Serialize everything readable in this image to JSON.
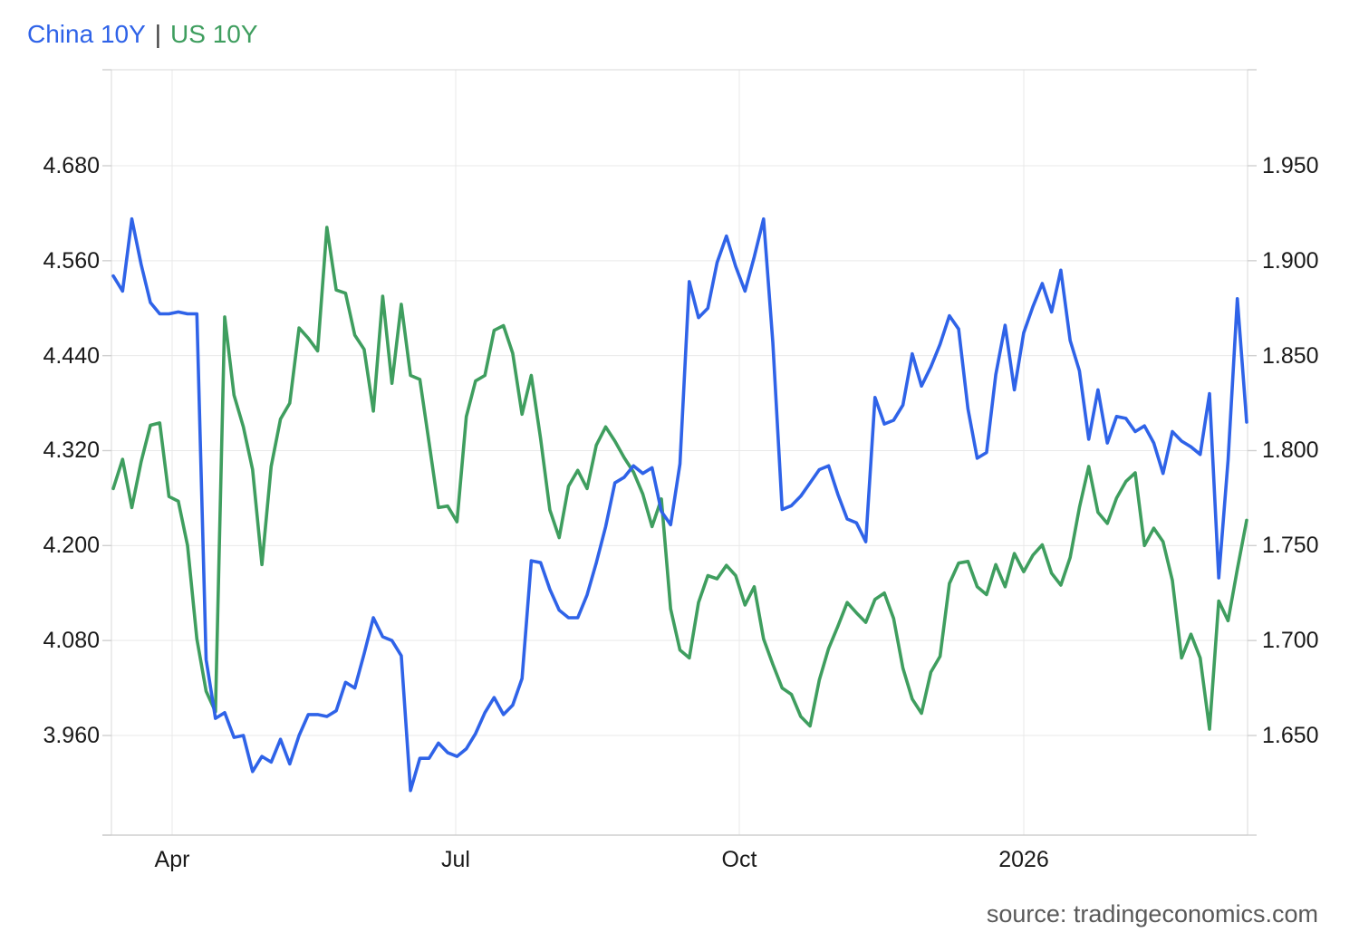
{
  "legend": {
    "china_label": "China 10Y",
    "separator": "|",
    "us_label": "US 10Y"
  },
  "source_note": "source: tradingeconomics.com",
  "colors": {
    "china_blue": "#2F63E8",
    "us_green": "#3F9E5F",
    "grid": "#E9E9E9",
    "plot_border": "#D9D9D9",
    "axis_line": "#CFCFCF",
    "tick_stub": "#CFCFCF",
    "tick_text": "#1A1A1A",
    "separator_text": "#3C3C3C",
    "source_text": "#595959"
  },
  "chart_data": {
    "type": "line",
    "title": "China 10Y | US 10Y",
    "grid": true,
    "legend_position": "top-left",
    "x_axis": {
      "tick_labels": [
        "Apr",
        "Jul",
        "Oct",
        "2026"
      ],
      "start_date": "2025-03-13",
      "end_date": "2026-03-14",
      "interval_days": 3
    },
    "left_axis": {
      "series": "US 10Y",
      "tick_labels": [
        "4.680",
        "4.560",
        "4.440",
        "4.320",
        "4.200",
        "4.080",
        "3.960"
      ],
      "top_value": 4.68,
      "step": 0.12
    },
    "right_axis": {
      "series": "China 10Y",
      "tick_labels": [
        "1.950",
        "1.900",
        "1.850",
        "1.800",
        "1.750",
        "1.700",
        "1.650"
      ],
      "top_value": 1.95,
      "step": 0.05
    },
    "series": [
      {
        "name": "China 10Y",
        "axis": "right",
        "unit": "percent",
        "values": [
          1.892,
          1.884,
          1.922,
          1.898,
          1.878,
          1.872,
          1.872,
          1.873,
          1.872,
          1.872,
          1.69,
          1.659,
          1.662,
          1.649,
          1.65,
          1.631,
          1.639,
          1.636,
          1.648,
          1.635,
          1.65,
          1.661,
          1.661,
          1.66,
          1.663,
          1.678,
          1.675,
          1.693,
          1.712,
          1.702,
          1.7,
          1.692,
          1.621,
          1.638,
          1.638,
          1.646,
          1.641,
          1.639,
          1.643,
          1.651,
          1.662,
          1.67,
          1.661,
          1.666,
          1.68,
          1.742,
          1.741,
          1.727,
          1.716,
          1.712,
          1.712,
          1.724,
          1.741,
          1.76,
          1.783,
          1.786,
          1.792,
          1.788,
          1.791,
          1.768,
          1.761,
          1.793,
          1.889,
          1.87,
          1.875,
          1.899,
          1.913,
          1.897,
          1.884,
          1.902,
          1.922,
          1.857,
          1.769,
          1.771,
          1.776,
          1.783,
          1.79,
          1.792,
          1.777,
          1.764,
          1.762,
          1.752,
          1.828,
          1.814,
          1.816,
          1.824,
          1.851,
          1.834,
          1.844,
          1.856,
          1.871,
          1.864,
          1.822,
          1.796,
          1.799,
          1.84,
          1.866,
          1.832,
          1.862,
          1.876,
          1.888,
          1.873,
          1.895,
          1.858,
          1.842,
          1.806,
          1.832,
          1.804,
          1.818,
          1.817,
          1.81,
          1.813,
          1.804,
          1.788,
          1.81,
          1.805,
          1.802,
          1.798,
          1.83,
          1.733,
          1.795,
          1.88,
          1.815
        ]
      },
      {
        "name": "US 10Y",
        "axis": "left",
        "unit": "percent",
        "values": [
          4.272,
          4.309,
          4.248,
          4.306,
          4.352,
          4.355,
          4.262,
          4.256,
          4.2,
          4.082,
          4.016,
          3.99,
          4.489,
          4.39,
          4.35,
          4.296,
          4.176,
          4.3,
          4.36,
          4.38,
          4.475,
          4.462,
          4.446,
          4.602,
          4.523,
          4.519,
          4.466,
          4.448,
          4.37,
          4.515,
          4.405,
          4.505,
          4.415,
          4.41,
          4.33,
          4.248,
          4.25,
          4.23,
          4.363,
          4.408,
          4.415,
          4.472,
          4.478,
          4.443,
          4.366,
          4.415,
          4.335,
          4.245,
          4.21,
          4.275,
          4.295,
          4.272,
          4.327,
          4.35,
          4.332,
          4.311,
          4.293,
          4.265,
          4.224,
          4.259,
          4.12,
          4.068,
          4.058,
          4.128,
          4.162,
          4.158,
          4.175,
          4.162,
          4.125,
          4.148,
          4.082,
          4.05,
          4.02,
          4.012,
          3.984,
          3.972,
          4.03,
          4.07,
          4.098,
          4.128,
          4.115,
          4.103,
          4.132,
          4.14,
          4.108,
          4.045,
          4.006,
          3.988,
          4.04,
          4.06,
          4.152,
          4.178,
          4.18,
          4.148,
          4.138,
          4.176,
          4.148,
          4.19,
          4.167,
          4.188,
          4.201,
          4.165,
          4.15,
          4.185,
          4.248,
          4.3,
          4.242,
          4.228,
          4.26,
          4.281,
          4.292,
          4.2,
          4.222,
          4.205,
          4.156,
          4.058,
          4.088,
          4.058,
          3.968,
          4.13,
          4.105,
          4.17,
          4.232
        ]
      }
    ]
  }
}
